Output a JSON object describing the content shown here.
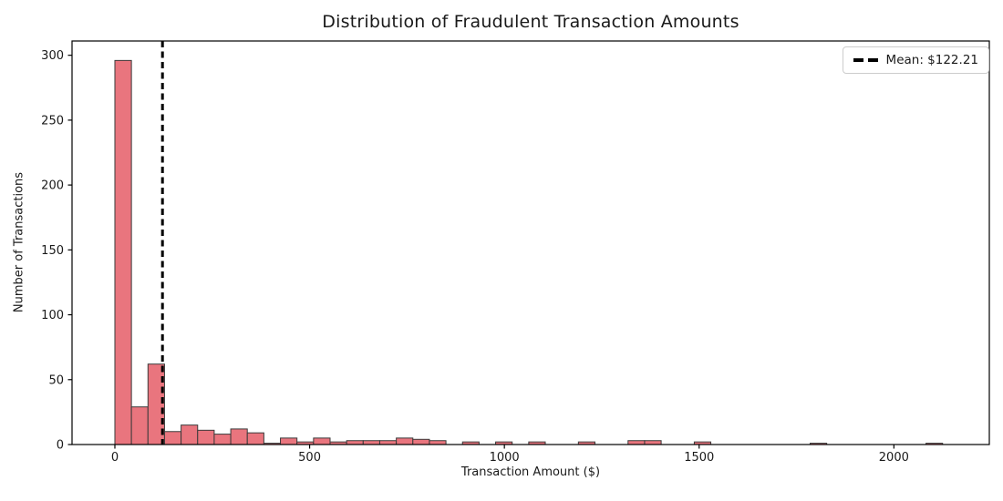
{
  "chart_data": {
    "type": "bar",
    "subtype": "histogram",
    "title": "Distribution of Fraudulent Transaction Amounts",
    "xlabel": "Transaction Amount ($)",
    "ylabel": "Number of Transactions",
    "bin_start": 0,
    "bin_width": 42.5,
    "counts": [
      296,
      29,
      62,
      10,
      15,
      11,
      8,
      12,
      9,
      1,
      5,
      2,
      5,
      2,
      3,
      3,
      3,
      5,
      4,
      3,
      0,
      2,
      0,
      2,
      0,
      2,
      0,
      0,
      2,
      0,
      0,
      3,
      3,
      0,
      0,
      2,
      0,
      0,
      0,
      0,
      0,
      0,
      1,
      0,
      0,
      0,
      0,
      0,
      0,
      1
    ],
    "xlim": [
      -110,
      2245
    ],
    "ylim": [
      0,
      311
    ],
    "xticks": [
      0,
      500,
      1000,
      1500,
      2000
    ],
    "yticks": [
      0,
      50,
      100,
      150,
      200,
      250,
      300
    ],
    "grid": false,
    "legend_position": "upper right",
    "mean_line": {
      "value": 122.21,
      "label": "Mean: $122.21",
      "style": "dashed",
      "width": 3
    },
    "colors": {
      "bar_fill": "#E9757E",
      "bar_edge": "#3B3B3B",
      "mean_line": "#000000",
      "spine": "#000000",
      "text": "#1a1a1a",
      "legend_border": "#cccccc",
      "background": "#ffffff"
    }
  }
}
